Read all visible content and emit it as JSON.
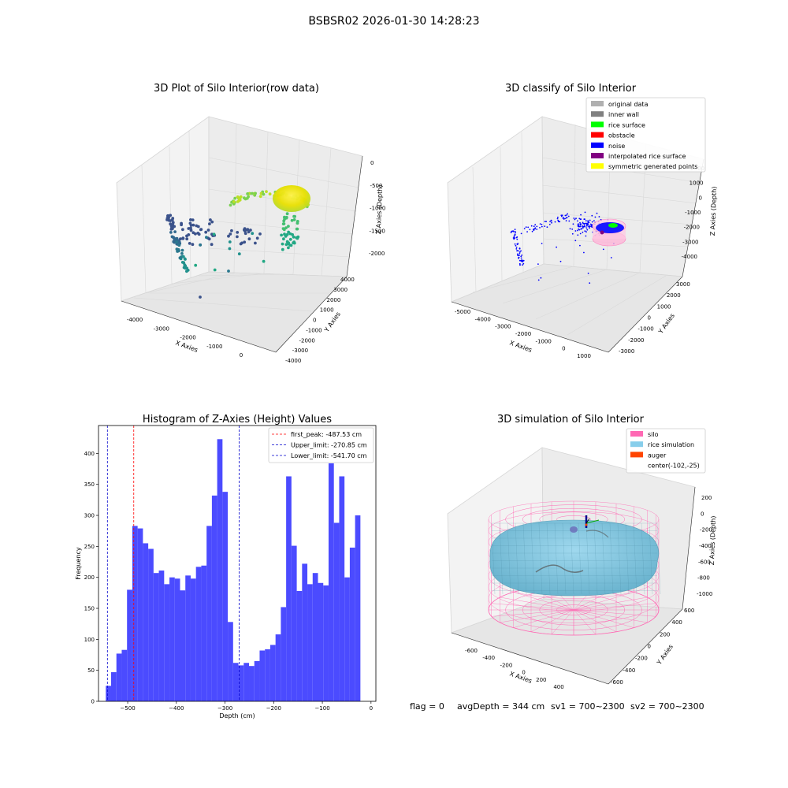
{
  "suptitle": "BSBSR02 2026-01-30 14:28:23",
  "status": {
    "flag": "flag = 0",
    "avg_depth": "avgDepth = 344 cm",
    "sv1": "sv1 = 700~2300",
    "sv2": "sv2 = 700~2300"
  },
  "colors": {
    "hist_bar": "#4b4bff",
    "first_peak": "#ff0000",
    "limits": "#0000cc",
    "silo": "#ff69b4",
    "rice": "#87ceeb",
    "auger": "#ff4500",
    "pane": "#efefef"
  },
  "chart_data": [
    {
      "type": "scatter",
      "panel": "3d-raw",
      "title": "3D Plot of Silo Interior(row data)",
      "xlabel": "X Axies",
      "ylabel": "Y Axies",
      "zlabel": "Z Axies (Depth)",
      "x_ticks": [
        "-4000",
        "-3000",
        "-2000",
        "-1000",
        "0"
      ],
      "y_ticks": [
        "-4000",
        "-3000",
        "-2000",
        "-1000",
        "0",
        "1000",
        "2000",
        "3000",
        "4000"
      ],
      "z_ticks": [
        "0",
        "-500",
        "-1000",
        "-1500",
        "-2000"
      ],
      "colormap": "viridis"
    },
    {
      "type": "scatter",
      "panel": "3d-classify",
      "title": "3D classify of Silo Interior",
      "xlabel": "X Axies",
      "ylabel": "Y Axies",
      "zlabel": "Z Axies (Depth)",
      "x_ticks": [
        "-5000",
        "-4000",
        "-3000",
        "-2000",
        "-1000",
        "0",
        "1000"
      ],
      "y_ticks": [
        "-3000",
        "-2000",
        "-1000",
        "0",
        "1000",
        "2000",
        "3000"
      ],
      "z_ticks": [
        "2000",
        "1000",
        "0",
        "-1000",
        "-2000",
        "-3000",
        "-4000"
      ],
      "legend": [
        {
          "label": "original data",
          "color": "#b0b0b0"
        },
        {
          "label": "inner wall",
          "color": "#808080"
        },
        {
          "label": "rice surface",
          "color": "#00ff00"
        },
        {
          "label": "obstacle",
          "color": "#ff0000"
        },
        {
          "label": "noise",
          "color": "#0000ff"
        },
        {
          "label": "interpolated rice surface",
          "color": "#800080"
        },
        {
          "label": "symmetric generated points",
          "color": "#ffff00"
        }
      ]
    },
    {
      "type": "bar",
      "panel": "histogram",
      "title": "Histogram of Z-Axies (Height) Values",
      "xlabel": "Depth (cm)",
      "ylabel": "Frequency",
      "xlim": [
        -560,
        10
      ],
      "ylim": [
        0,
        445
      ],
      "x_ticks": [
        -500,
        -400,
        -300,
        -200,
        -100,
        0
      ],
      "y_ticks": [
        0,
        50,
        100,
        150,
        200,
        250,
        300,
        350,
        400
      ],
      "bin_start": -545,
      "bin_width": 10.9,
      "values": [
        25,
        47,
        77,
        83,
        180,
        283,
        279,
        255,
        246,
        207,
        211,
        189,
        200,
        198,
        179,
        203,
        198,
        217,
        219,
        283,
        332,
        423,
        338,
        128,
        62,
        58,
        62,
        57,
        65,
        82,
        84,
        91,
        108,
        152,
        363,
        251,
        178,
        222,
        189,
        207,
        191,
        187,
        384,
        288,
        363,
        200,
        248,
        300
      ],
      "lines": [
        {
          "label": "first_peak: -487.53 cm",
          "x": -487.53,
          "color": "#ff0000"
        },
        {
          "label": "Upper_limit: -270.85 cm",
          "x": -270.85,
          "color": "#0000cc"
        },
        {
          "label": "Lower_limit: -541.70 cm",
          "x": -541.7,
          "color": "#0000cc"
        }
      ]
    },
    {
      "type": "scatter",
      "panel": "3d-simulation",
      "title": "3D simulation of Silo Interior",
      "xlabel": "X Axies",
      "ylabel": "Y Axies",
      "zlabel": "Z Axies (Depth)",
      "x_ticks": [
        "-600",
        "-400",
        "-200",
        "0",
        "200",
        "400"
      ],
      "y_ticks": [
        "-600",
        "-400",
        "-200",
        "0",
        "200",
        "400",
        "600"
      ],
      "z_ticks": [
        "200",
        "0",
        "-200",
        "-400",
        "-600",
        "-800",
        "-1000"
      ],
      "legend": [
        {
          "label": "silo",
          "color": "#ff69b4"
        },
        {
          "label": "rice simulation",
          "color": "#87ceeb"
        },
        {
          "label": "auger",
          "color": "#ff4500"
        },
        {
          "label": "center(-102,-25)",
          "color": ""
        }
      ]
    }
  ]
}
